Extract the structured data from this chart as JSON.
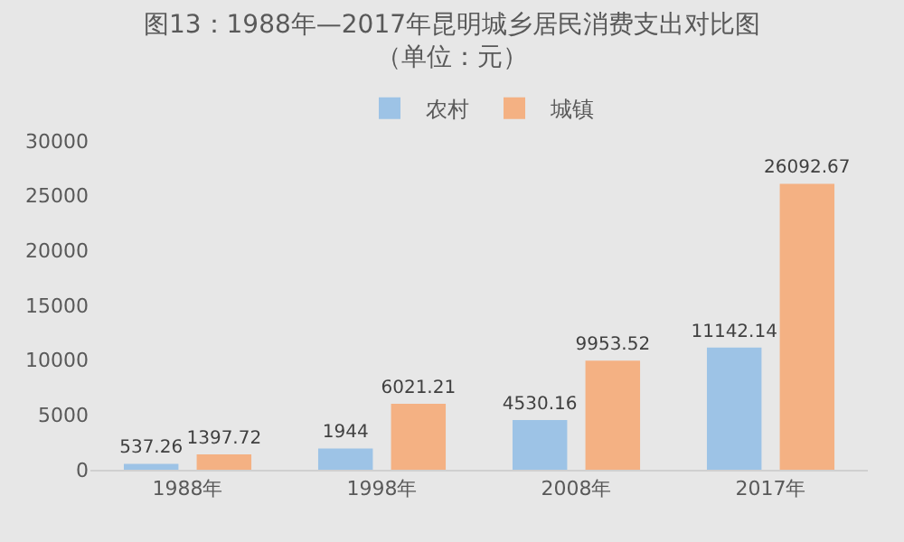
{
  "chart_data": {
    "type": "bar",
    "title": "图13：1988年—2017年昆明城乡居民消费支出对比图",
    "subtitle": "（单位：元）",
    "categories": [
      "1988年",
      "1998年",
      "2008年",
      "2017年"
    ],
    "series": [
      {
        "name": "农村",
        "color": "#9dc3e6",
        "values": [
          537.26,
          1944,
          4530.16,
          11142.14
        ]
      },
      {
        "name": "城镇",
        "color": "#f4b183",
        "values": [
          1397.72,
          6021.21,
          9953.52,
          26092.67
        ]
      }
    ],
    "ylim": [
      0,
      30000
    ],
    "yticks": [
      0,
      5000,
      10000,
      15000,
      20000,
      25000,
      30000
    ],
    "grid": false,
    "legend": "top",
    "data_labels": true
  }
}
